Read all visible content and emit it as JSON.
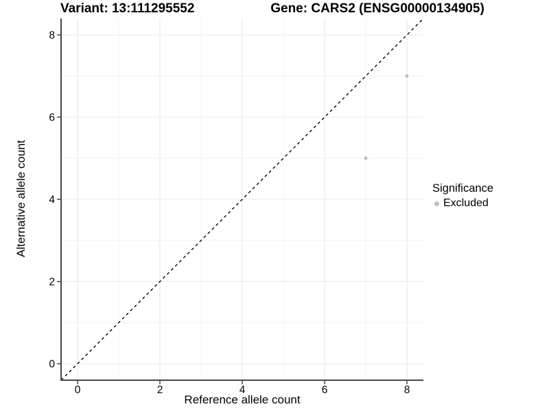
{
  "chart_data": {
    "type": "scatter",
    "title_left": "Variant: 13:111295552",
    "title_right": "Gene: CARS2 (ENSG00000134905)",
    "xlabel": "Reference allele count",
    "ylabel": "Alternative allele count",
    "xlim": [
      -0.4,
      8.4
    ],
    "ylim": [
      -0.4,
      8.4
    ],
    "x_ticks": [
      0,
      2,
      4,
      6,
      8
    ],
    "y_ticks": [
      0,
      2,
      4,
      6,
      8
    ],
    "x_minor_breaks": [
      1,
      3,
      5,
      7
    ],
    "y_minor_breaks": [
      1,
      3,
      5,
      7
    ],
    "grid": true,
    "series": [
      {
        "name": "Excluded",
        "color": "#bebebe",
        "points": [
          {
            "x": 7,
            "y": 5
          },
          {
            "x": 8,
            "y": 7
          }
        ]
      }
    ],
    "reference_line": {
      "kind": "identity y=x",
      "slope": 1,
      "intercept": 0,
      "style": "dashed",
      "color": "#000000"
    },
    "legend": {
      "title": "Significance",
      "position": "right",
      "items": [
        {
          "label": "Excluded",
          "color": "#bebebe"
        }
      ]
    },
    "style": {
      "point_radius": 2.5,
      "grid_major": "#e8e8e8",
      "grid_minor": "#f2f2f2",
      "axis_line": "#464646",
      "text": "#000000",
      "background": "#ffffff"
    }
  }
}
